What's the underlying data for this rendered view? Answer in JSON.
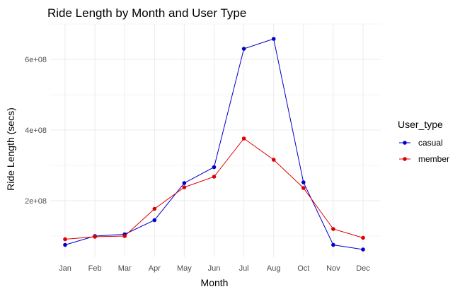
{
  "chart_data": {
    "type": "line",
    "title": "Ride Length by Month and User Type",
    "xlabel": "Month",
    "ylabel": "Ride Length (secs)",
    "categories": [
      "Jan",
      "Feb",
      "Mar",
      "Apr",
      "May",
      "Jun",
      "Jul",
      "Aug",
      "Oct",
      "Nov",
      "Dec"
    ],
    "ylim": [
      40000000,
      700000000
    ],
    "yticks": [
      200000000,
      400000000,
      600000000
    ],
    "ytick_labels": [
      "2e+08",
      "4e+08",
      "6e+08"
    ],
    "grid": true,
    "legend": {
      "title": "User_type",
      "position": "right"
    },
    "series": [
      {
        "name": "casual",
        "color": "#0000cc",
        "values": [
          75000000,
          100000000,
          105000000,
          145000000,
          250000000,
          295000000,
          630000000,
          658000000,
          252000000,
          75000000,
          62000000
        ]
      },
      {
        "name": "member",
        "color": "#dd0000",
        "values": [
          91000000,
          98000000,
          100000000,
          177000000,
          238000000,
          268000000,
          376000000,
          316000000,
          236000000,
          120000000,
          95000000
        ]
      }
    ]
  }
}
